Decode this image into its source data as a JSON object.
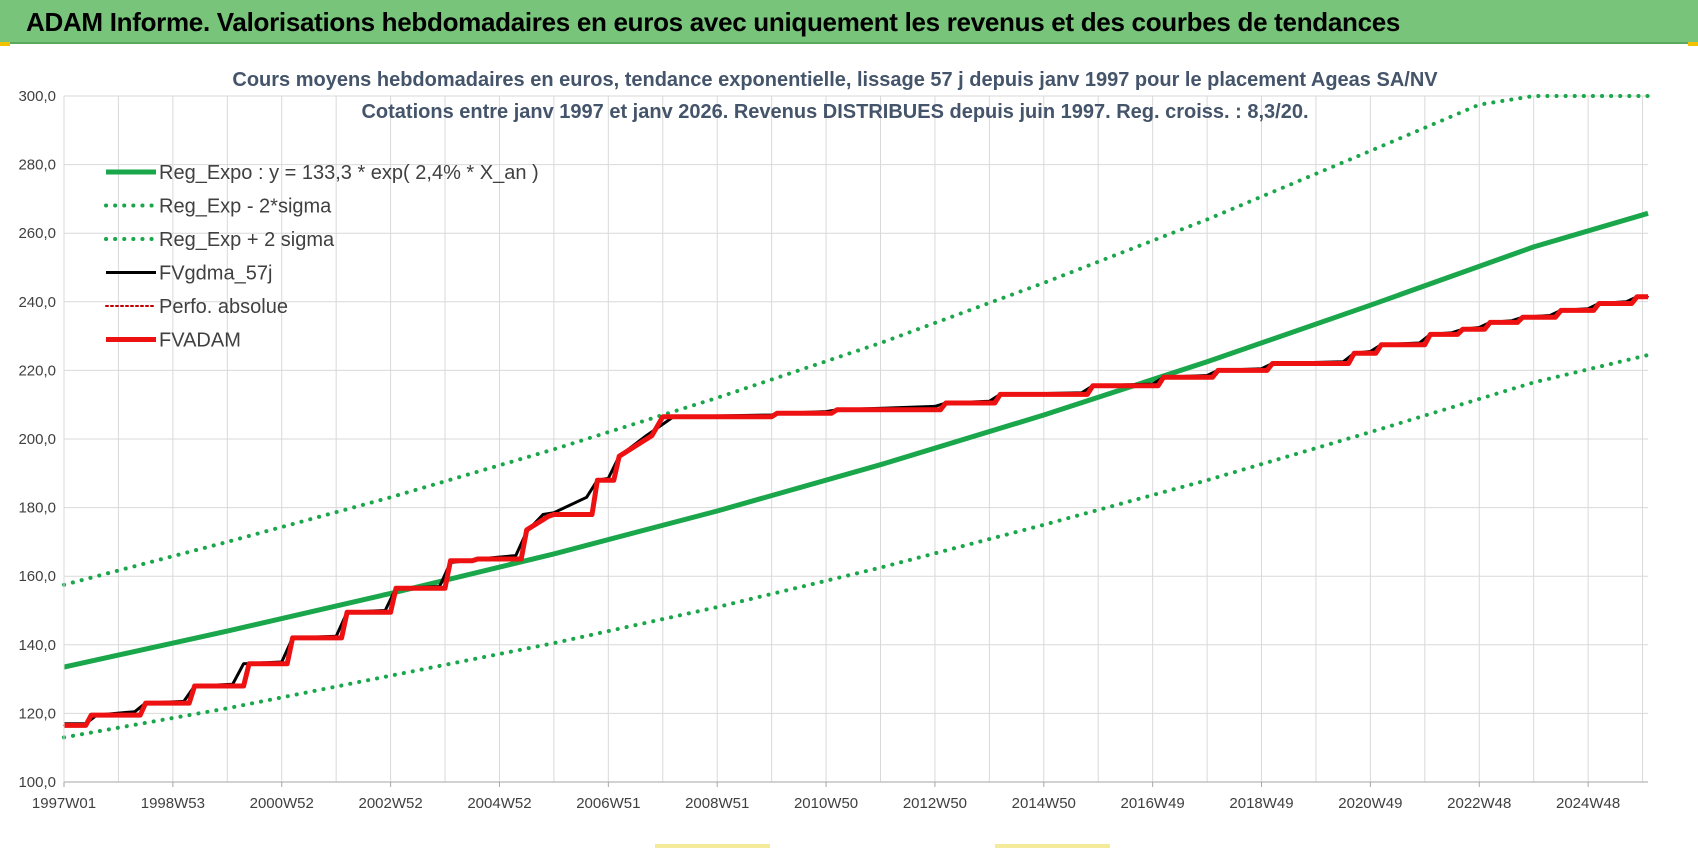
{
  "banner": {
    "title": "ADAM Informe. Valorisations hebdomadaires en euros avec uniquement les revenus et des courbes de tendances"
  },
  "colors": {
    "banner_bg": "#77c47a",
    "green": "#1aa64a",
    "black": "#000000",
    "red": "#ee1111",
    "grid": "#d9d9d9"
  },
  "chart_data": {
    "type": "line",
    "title": "Cours moyens hebdomadaires en euros, tendance exponentielle, lissage 57 j depuis janv 1997 pour le placement Ageas SA/NV",
    "subtitle": "Cotations entre janv 1997 et janv 2026. Revenus DISTRIBUES depuis juin 1997. Reg. croiss. : 8,3/20.",
    "xlabel": "",
    "ylabel": "",
    "ylim": [
      100,
      300
    ],
    "xlim": [
      1997.0,
      2026.1
    ],
    "grid": true,
    "legend_position": "top-left",
    "y_ticks": [
      "100,0",
      "120,0",
      "140,0",
      "160,0",
      "180,0",
      "200,0",
      "220,0",
      "240,0",
      "260,0",
      "280,0",
      "300,0"
    ],
    "y_tick_values": [
      100,
      120,
      140,
      160,
      180,
      200,
      220,
      240,
      260,
      280,
      300
    ],
    "x_ticks": [
      "1997W01",
      "1998W53",
      "2000W52",
      "2002W52",
      "2004W52",
      "2006W51",
      "2008W51",
      "2010W50",
      "2012W50",
      "2014W50",
      "2016W49",
      "2018W49",
      "2020W49",
      "2022W48",
      "2024W48"
    ],
    "x_tick_values": [
      1997.0,
      1999.0,
      2001.0,
      2003.0,
      2005.0,
      2007.0,
      2009.0,
      2011.0,
      2013.0,
      2015.0,
      2017.0,
      2019.0,
      2021.0,
      2023.0,
      2025.0
    ],
    "series": [
      {
        "name": "Reg_Expo : y = 133,3 * exp( 2,4% *  X_an )",
        "style": "solid",
        "color": "#1aa64a",
        "width": 5,
        "x": [
          1997.0,
          2000.0,
          2003.0,
          2006.0,
          2009.0,
          2012.0,
          2015.0,
          2018.0,
          2021.0,
          2024.0,
          2026.1
        ],
        "y": [
          133.5,
          144.0,
          155.0,
          166.5,
          179.0,
          192.5,
          207.0,
          222.5,
          239.0,
          256.0,
          265.8
        ]
      },
      {
        "name": "Reg_Exp - 2*sigma",
        "style": "dotted",
        "color": "#1aa64a",
        "width": 4,
        "x": [
          1997.0,
          2000.0,
          2003.0,
          2006.0,
          2009.0,
          2012.0,
          2015.0,
          2018.0,
          2021.0,
          2024.0,
          2026.1
        ],
        "y": [
          113.0,
          121.5,
          131.0,
          140.5,
          151.0,
          162.5,
          175.0,
          188.0,
          202.0,
          216.5,
          224.5
        ]
      },
      {
        "name": "Reg_Exp + 2 sigma",
        "style": "dotted",
        "color": "#1aa64a",
        "width": 4,
        "x": [
          1997.0,
          2000.0,
          2003.0,
          2006.0,
          2009.0,
          2012.0,
          2015.0,
          2018.0,
          2021.0,
          2023.0,
          2024.0,
          2026.1
        ],
        "y": [
          157.5,
          170.0,
          183.0,
          197.0,
          212.0,
          228.0,
          245.5,
          264.0,
          284.0,
          297.5,
          300.0,
          300.0
        ]
      },
      {
        "name": "FVgdma_57j",
        "style": "solid",
        "color": "#000000",
        "width": 3,
        "x": [
          1997.0,
          1997.4,
          1997.6,
          1998.3,
          1998.5,
          1999.2,
          1999.4,
          2000.1,
          2000.3,
          2001.0,
          2001.2,
          2002.0,
          2002.2,
          2002.9,
          2003.1,
          2003.9,
          2004.1,
          2004.4,
          2004.6,
          2005.3,
          2005.5,
          2005.8,
          2006.0,
          2006.6,
          2006.8,
          2007.0,
          2007.2,
          2007.7,
          2008.2,
          2010.0,
          2010.2,
          2011.0,
          2011.2,
          2013.0,
          2013.2,
          2014.0,
          2014.2,
          2015.7,
          2015.9,
          2017.0,
          2017.2,
          2018.0,
          2018.2,
          2019.0,
          2019.2,
          2020.5,
          2020.7,
          2021.0,
          2021.2,
          2021.9,
          2022.1,
          2022.5,
          2022.7,
          2023.0,
          2023.2,
          2023.6,
          2023.8,
          2024.3,
          2024.5,
          2025.0,
          2025.2,
          2025.7,
          2025.9,
          2026.1
        ],
        "y": [
          117.0,
          117.0,
          119.5,
          120.5,
          123.0,
          123.5,
          128.0,
          128.5,
          134.5,
          135.0,
          142.0,
          142.5,
          149.5,
          150.0,
          156.5,
          157.0,
          164.0,
          164.5,
          165.0,
          166.0,
          173.0,
          178.0,
          178.5,
          183.0,
          188.0,
          188.5,
          195.0,
          201.0,
          206.5,
          207.0,
          207.5,
          208.0,
          208.5,
          209.5,
          210.5,
          211.0,
          213.0,
          213.5,
          215.5,
          216.0,
          218.0,
          218.5,
          220.0,
          220.5,
          222.0,
          222.5,
          225.0,
          225.5,
          227.5,
          228.0,
          230.5,
          231.0,
          232.0,
          232.5,
          234.0,
          234.5,
          235.5,
          236.0,
          237.5,
          238.0,
          239.5,
          240.0,
          241.5,
          241.5
        ]
      },
      {
        "name": "Perfo. absolue",
        "style": "dotted",
        "color": "#c00000",
        "width": 2,
        "x": [
          1997.0,
          1997.4,
          1997.5,
          1998.4,
          1998.5,
          1999.3,
          1999.4,
          2000.3,
          2000.4,
          2001.1,
          2001.2,
          2002.1,
          2002.2,
          2003.0,
          2003.1,
          2004.0,
          2004.1,
          2004.5,
          2004.6,
          2005.4,
          2005.5,
          2005.9,
          2006.0,
          2006.7,
          2006.8,
          2007.1,
          2007.2,
          2007.8,
          2008.0,
          2010.0,
          2010.1,
          2011.1,
          2011.2,
          2013.1,
          2013.2,
          2014.1,
          2014.2,
          2015.8,
          2015.9,
          2017.1,
          2017.2,
          2018.1,
          2018.2,
          2019.1,
          2019.2,
          2020.6,
          2020.7,
          2021.1,
          2021.2,
          2022.0,
          2022.1,
          2022.6,
          2022.7,
          2023.1,
          2023.2,
          2023.7,
          2023.8,
          2024.4,
          2024.5,
          2025.1,
          2025.2,
          2025.8,
          2025.9,
          2026.1
        ],
        "y": [
          116.5,
          116.5,
          119.5,
          119.5,
          123.0,
          123.0,
          128.0,
          128.0,
          134.5,
          134.5,
          142.0,
          142.0,
          149.5,
          149.5,
          156.5,
          156.5,
          164.5,
          164.5,
          165.0,
          165.0,
          173.5,
          177.5,
          178.0,
          178.0,
          188.0,
          188.0,
          195.0,
          201.0,
          206.5,
          206.5,
          207.5,
          207.5,
          208.5,
          208.5,
          210.5,
          210.5,
          213.0,
          213.0,
          215.5,
          215.5,
          218.0,
          218.0,
          220.0,
          220.0,
          222.0,
          222.0,
          225.0,
          225.0,
          227.5,
          227.5,
          230.5,
          230.5,
          232.0,
          232.0,
          234.0,
          234.0,
          235.5,
          235.5,
          237.5,
          237.5,
          239.5,
          239.5,
          241.5,
          241.5
        ]
      },
      {
        "name": "FVADAM",
        "style": "solid",
        "color": "#ee1111",
        "width": 5,
        "x": [
          1997.0,
          1997.4,
          1997.5,
          1998.4,
          1998.5,
          1999.3,
          1999.4,
          2000.3,
          2000.4,
          2001.1,
          2001.2,
          2002.1,
          2002.2,
          2003.0,
          2003.1,
          2004.0,
          2004.1,
          2004.5,
          2004.6,
          2005.4,
          2005.5,
          2005.9,
          2006.0,
          2006.7,
          2006.8,
          2007.1,
          2007.2,
          2007.8,
          2008.0,
          2010.0,
          2010.1,
          2011.1,
          2011.2,
          2013.1,
          2013.2,
          2014.1,
          2014.2,
          2015.8,
          2015.9,
          2017.1,
          2017.2,
          2018.1,
          2018.2,
          2019.1,
          2019.2,
          2020.6,
          2020.7,
          2021.1,
          2021.2,
          2022.0,
          2022.1,
          2022.6,
          2022.7,
          2023.1,
          2023.2,
          2023.7,
          2023.8,
          2024.4,
          2024.5,
          2025.1,
          2025.2,
          2025.8,
          2025.9,
          2026.1
        ],
        "y": [
          116.5,
          116.5,
          119.5,
          119.5,
          123.0,
          123.0,
          128.0,
          128.0,
          134.5,
          134.5,
          142.0,
          142.0,
          149.5,
          149.5,
          156.5,
          156.5,
          164.5,
          164.5,
          165.0,
          165.0,
          173.5,
          177.5,
          178.0,
          178.0,
          188.0,
          188.0,
          195.0,
          201.0,
          206.5,
          206.5,
          207.5,
          207.5,
          208.5,
          208.5,
          210.5,
          210.5,
          213.0,
          213.0,
          215.5,
          215.5,
          218.0,
          218.0,
          220.0,
          220.0,
          222.0,
          222.0,
          225.0,
          225.0,
          227.5,
          227.5,
          230.5,
          230.5,
          232.0,
          232.0,
          234.0,
          234.0,
          235.5,
          235.5,
          237.5,
          237.5,
          239.5,
          239.5,
          241.5,
          241.5
        ]
      }
    ]
  }
}
